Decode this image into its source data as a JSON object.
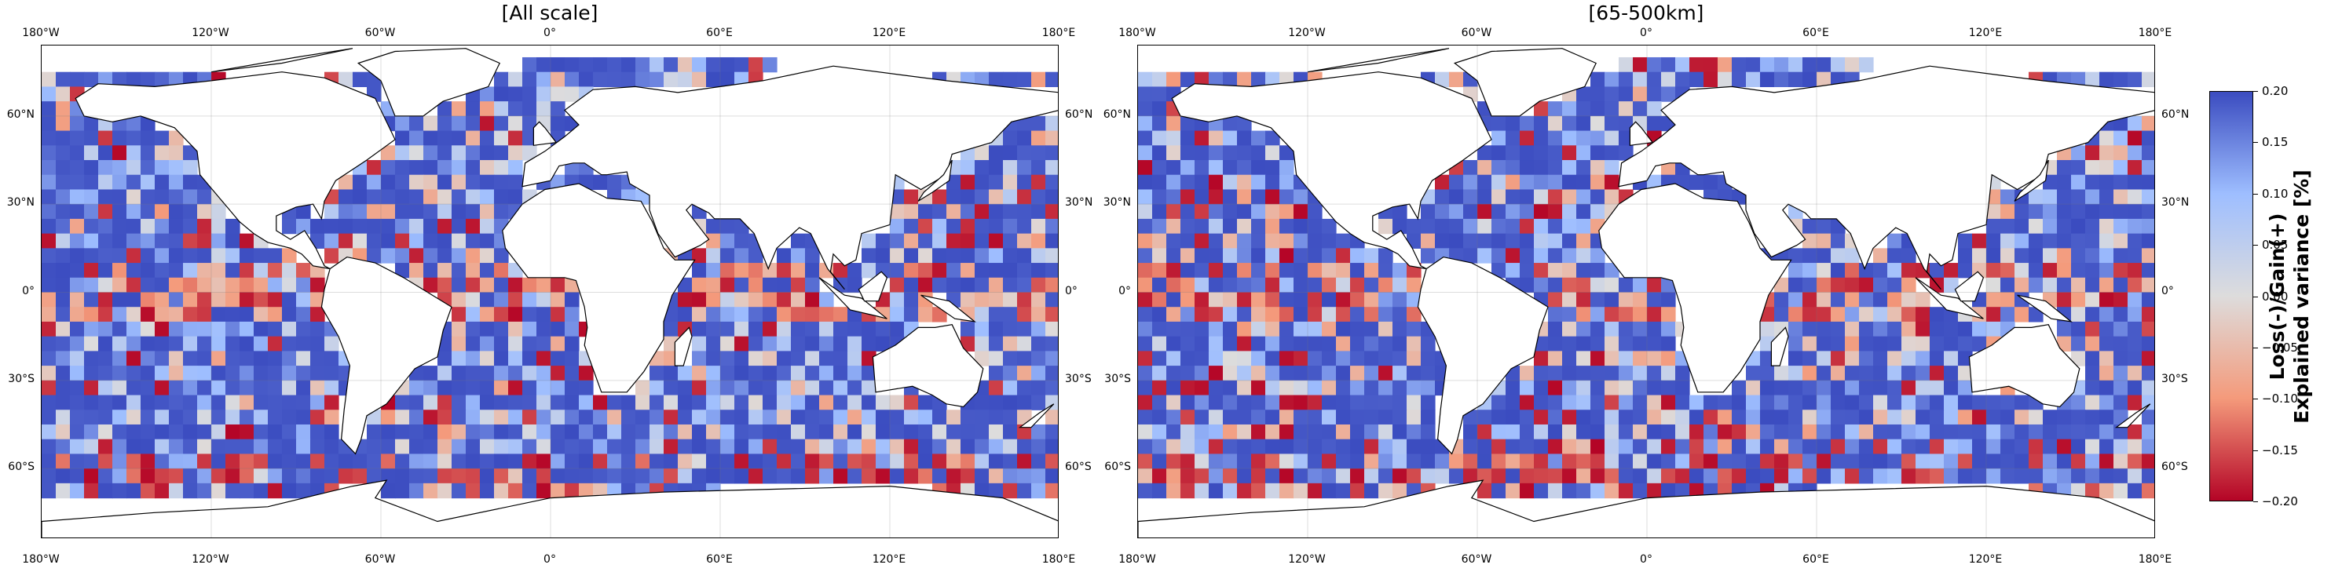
{
  "chart_data": {
    "type": "heatmap",
    "description_kind": "global gridded maps",
    "panels": [
      {
        "title": "[All scale]",
        "seed": 11
      },
      {
        "title": "[65-500km]",
        "seed": 29
      }
    ],
    "lon_ticks": [
      "180°W",
      "120°W",
      "60°W",
      "0°",
      "60°E",
      "120°E",
      "180°E"
    ],
    "lat_ticks_left": [
      "60°N",
      "30°N",
      "0°",
      "30°S",
      "60°S"
    ],
    "lat_ticks_right": [
      "60°N",
      "30°N",
      "0°",
      "30°S",
      "60°S"
    ],
    "lon_range": [
      -180,
      180
    ],
    "lat_range": [
      -90,
      90
    ],
    "grid": true,
    "colormap": "coolwarm_r",
    "colormap_colors": [
      "#b40426",
      "#f49a7b",
      "#dddcdc",
      "#9ebeff",
      "#3b4cc0"
    ],
    "colorbar": {
      "ticks": [
        "0.20",
        "0.15",
        "0.10",
        "0.05",
        "0.00",
        "−0.05",
        "−0.10",
        "−0.15",
        "−0.20"
      ],
      "vmin": -0.2,
      "vmax": 0.2,
      "label_line1": "Loss(-)/Gain(+)",
      "label_line2": "Explained variance [%]"
    }
  }
}
